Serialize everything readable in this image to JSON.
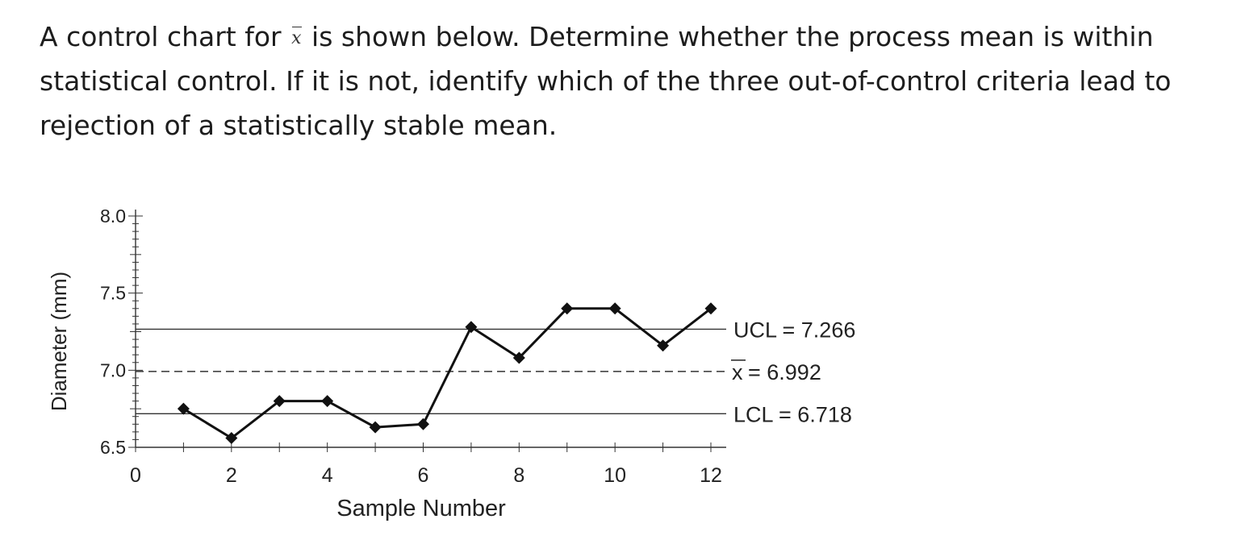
{
  "question": {
    "before_symbol": "A control chart for",
    "symbol": "x",
    "after_symbol": "is shown below. Determine whether the process mean is within statistical control. If it is not, identify which of the three out-of-control criteria lead to rejection of a statistically stable mean."
  },
  "chart_data": {
    "type": "line",
    "xlabel": "Sample Number",
    "ylabel": "Diameter (mm)",
    "xlim": [
      0,
      12
    ],
    "ylim": [
      6.5,
      8.0
    ],
    "x_ticks": [
      "0",
      "2",
      "4",
      "6",
      "8",
      "10",
      "12"
    ],
    "y_ticks": [
      "6.5",
      "7.0",
      "7.5",
      "8.0"
    ],
    "x_tick_values": [
      0,
      2,
      4,
      6,
      8,
      10,
      12
    ],
    "y_tick_values": [
      6.5,
      7.0,
      7.5,
      8.0
    ],
    "grid": false,
    "x": [
      1,
      2,
      3,
      4,
      5,
      6,
      7,
      8,
      9,
      10,
      11,
      12
    ],
    "values": [
      6.75,
      6.56,
      6.8,
      6.8,
      6.63,
      6.65,
      7.28,
      7.08,
      7.4,
      7.4,
      7.16,
      7.4
    ],
    "control_lines": [
      {
        "label": "UCL = 7.266",
        "value": 7.266,
        "style": "solid"
      },
      {
        "symbol": "x",
        "label": "= 6.992",
        "value": 6.992,
        "style": "dashed"
      },
      {
        "label": "LCL = 6.718",
        "value": 6.718,
        "style": "solid"
      }
    ],
    "colors": {
      "line": "#111111",
      "axis": "#333333"
    }
  }
}
